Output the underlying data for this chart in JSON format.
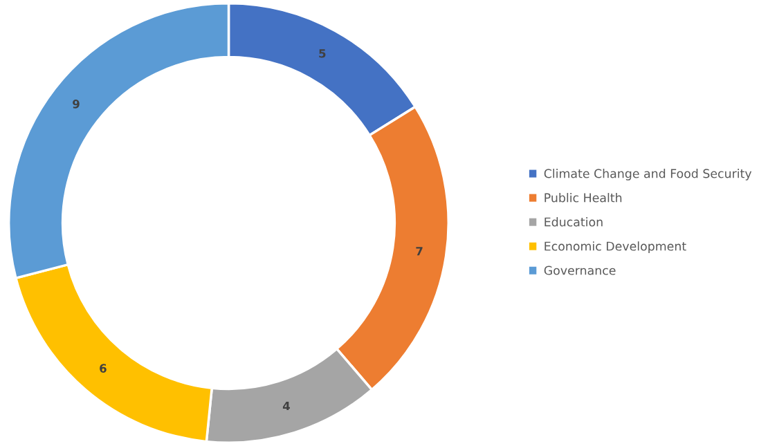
{
  "chart_data": {
    "type": "donut",
    "categories": [
      "Climate Change and Food Security",
      "Public Health",
      "Education",
      "Economic Development",
      "Governance"
    ],
    "values": [
      5,
      7,
      4,
      6,
      9
    ],
    "colors": [
      "#4472c4",
      "#ed7d31",
      "#a5a5a5",
      "#ffc000",
      "#5b9bd5"
    ],
    "data_labels": true,
    "legend": "right"
  }
}
